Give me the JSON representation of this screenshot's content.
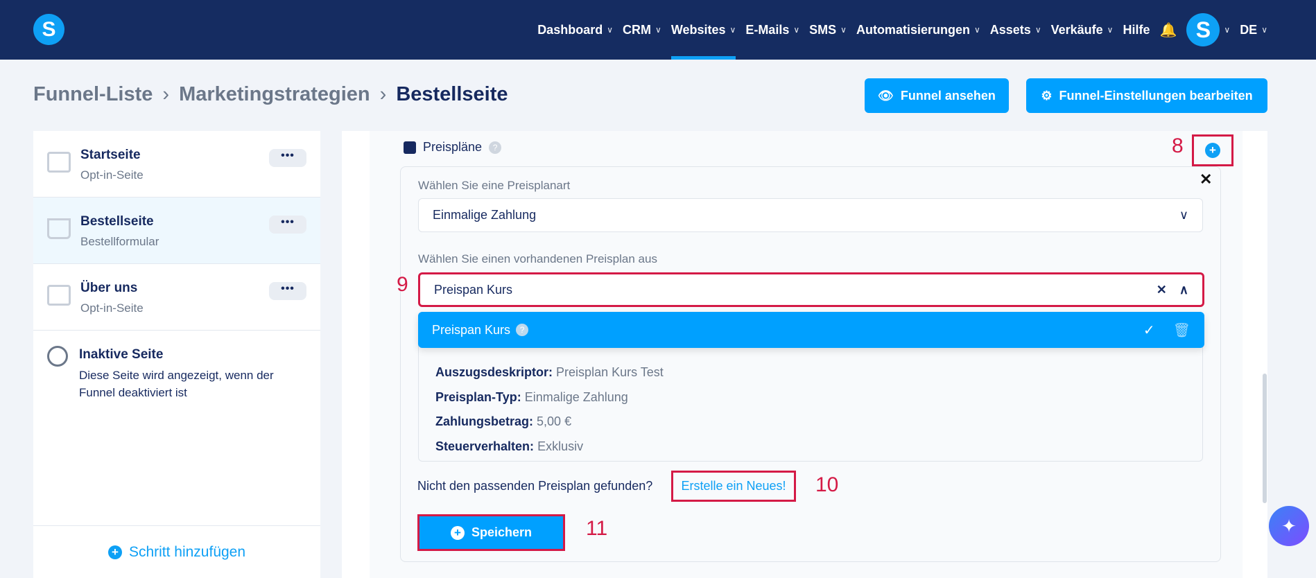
{
  "nav": {
    "logo": "S",
    "items": [
      {
        "label": "Dashboard",
        "active": false
      },
      {
        "label": "CRM",
        "active": false
      },
      {
        "label": "Websites",
        "active": true
      },
      {
        "label": "E-Mails",
        "active": false
      },
      {
        "label": "SMS",
        "active": false
      },
      {
        "label": "Automatisierungen",
        "active": false
      },
      {
        "label": "Assets",
        "active": false
      },
      {
        "label": "Verkäufe",
        "active": false
      }
    ],
    "help": "Hilfe",
    "avatar": "S",
    "lang": "DE"
  },
  "breadcrumb": [
    "Funnel-Liste",
    "Marketingstrategien",
    "Bestellseite"
  ],
  "actions": {
    "view": "Funnel ansehen",
    "settings": "Funnel-Einstellungen bearbeiten"
  },
  "sidebar": {
    "items": [
      {
        "title": "Startseite",
        "sub": "Opt-in-Seite"
      },
      {
        "title": "Bestellseite",
        "sub": "Bestellformular"
      },
      {
        "title": "Über uns",
        "sub": "Opt-in-Seite"
      }
    ],
    "more": "•••",
    "inactive": {
      "title": "Inaktive Seite",
      "desc": "Diese Seite wird angezeigt, wenn der Funnel deaktiviert ist"
    },
    "add_step": "Schritt hinzufügen"
  },
  "pricing": {
    "title": "Preispläne",
    "type_label": "Wählen Sie eine Preisplanart",
    "type_value": "Einmalige Zahlung",
    "plan_label": "Wählen Sie einen vorhandenen Preisplan aus",
    "plan_value": "Preispan Kurs",
    "option": "Preispan Kurs",
    "details": [
      {
        "k": "Auszugsdeskriptor:",
        "v": "Preisplan Kurs Test"
      },
      {
        "k": "Preisplan-Typ:",
        "v": "Einmalige Zahlung"
      },
      {
        "k": "Zahlungsbetrag:",
        "v": "5,00 €"
      },
      {
        "k": "Steuerverhalten:",
        "v": "Exklusiv"
      }
    ],
    "not_found": "Nicht den passenden Preisplan gefunden?",
    "create_link": "Erstelle ein Neues!",
    "save": "Speichern"
  },
  "annotations": [
    "8",
    "9",
    "10",
    "11"
  ],
  "colors": {
    "nav": "#152c61",
    "accent": "#00a0ff",
    "annotation": "#d41a46"
  }
}
